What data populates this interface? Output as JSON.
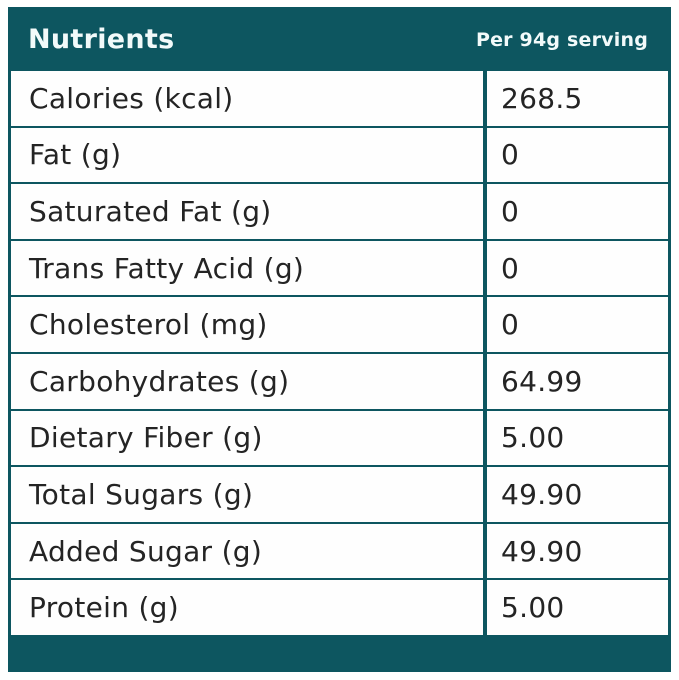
{
  "header": {
    "title": "Nutrients",
    "serving_label": "Per 94g serving"
  },
  "colors": {
    "teal": "#0d5660",
    "row_background": "#fefefe",
    "text": "#242424",
    "header_text": "#f2fafa"
  },
  "table": {
    "rows": [
      {
        "label": "Calories (kcal)",
        "value": "268.5"
      },
      {
        "label": "Fat (g)",
        "value": "0"
      },
      {
        "label": "Saturated Fat (g)",
        "value": "0"
      },
      {
        "label": "Trans Fatty Acid (g)",
        "value": "0"
      },
      {
        "label": "Cholesterol (mg)",
        "value": "0"
      },
      {
        "label": "Carbohydrates (g)",
        "value": "64.99"
      },
      {
        "label": "Dietary Fiber (g)",
        "value": "5.00"
      },
      {
        "label": "Total Sugars (g)",
        "value": "49.90"
      },
      {
        "label": "Added Sugar (g)",
        "value": "49.90"
      },
      {
        "label": "Protein (g)",
        "value": "5.00"
      }
    ]
  },
  "chart_data": {
    "type": "table",
    "title": "Nutrients",
    "columns": [
      "Nutrients",
      "Per 94g serving"
    ],
    "rows": [
      [
        "Calories (kcal)",
        "268.5"
      ],
      [
        "Fat (g)",
        "0"
      ],
      [
        "Saturated Fat (g)",
        "0"
      ],
      [
        "Trans Fatty Acid (g)",
        "0"
      ],
      [
        "Cholesterol (mg)",
        "0"
      ],
      [
        "Carbohydrates (g)",
        "64.99"
      ],
      [
        "Dietary Fiber (g)",
        "5.00"
      ],
      [
        "Total Sugars (g)",
        "49.90"
      ],
      [
        "Added Sugar (g)",
        "49.90"
      ],
      [
        "Protein (g)",
        "5.00"
      ]
    ]
  }
}
